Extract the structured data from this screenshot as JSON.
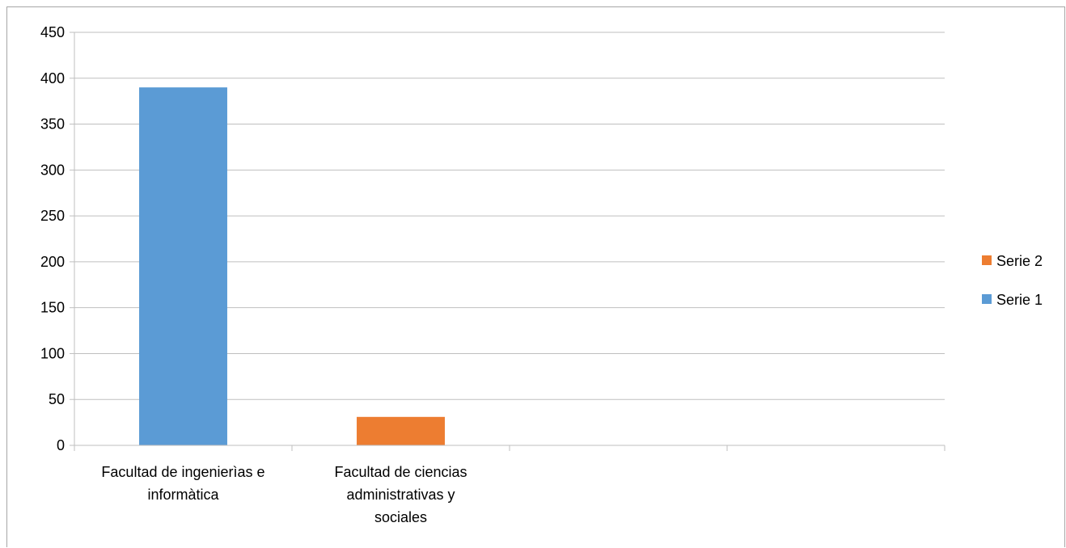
{
  "chart_data": {
    "type": "bar",
    "categories": [
      [
        "Facultad de ingenierìas e",
        "informàtica"
      ],
      [
        "Facultad de ciencias",
        "administrativas y",
        "sociales"
      ],
      [
        ""
      ],
      [
        ""
      ]
    ],
    "series": [
      {
        "name": "Serie 1",
        "color": "#5b9bd5",
        "values": [
          390,
          null,
          null,
          null
        ]
      },
      {
        "name": "Serie 2",
        "color": "#ed7d31",
        "values": [
          null,
          31,
          null,
          null
        ]
      }
    ],
    "ylim": [
      0,
      450
    ],
    "yticks": [
      0,
      50,
      100,
      150,
      200,
      250,
      300,
      350,
      400,
      450
    ],
    "grid": true,
    "legend_position": "right",
    "legend_order": [
      "Serie 2",
      "Serie 1"
    ]
  }
}
